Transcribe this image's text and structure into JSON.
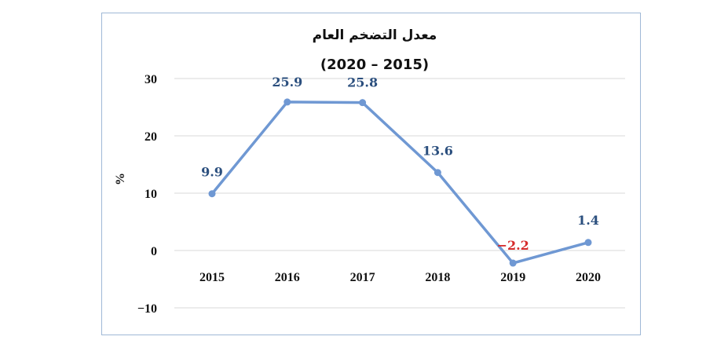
{
  "chart_data": {
    "type": "line",
    "title": "معدل التضخم العام",
    "subtitle": "(2020 – 2015)",
    "ylabel": "%",
    "xlabel": "",
    "x": [
      "2015",
      "2016",
      "2017",
      "2018",
      "2019",
      "2020"
    ],
    "series": [
      {
        "values": [
          9.9,
          25.9,
          25.8,
          13.6,
          -2.2,
          1.4
        ],
        "color": "#6f98d3"
      }
    ],
    "data_labels": [
      "9.9",
      "25.9",
      "25.8",
      "13.6",
      "−2.2",
      "1.4"
    ],
    "yticks": [
      30,
      20,
      10,
      0,
      -10
    ],
    "ytick_labels": [
      "30",
      "20",
      "10",
      "0",
      "−10"
    ],
    "ylim": [
      -10,
      30
    ],
    "grid": true,
    "colors": {
      "line": "#6f98d3",
      "label": "#2b4f7e",
      "negative_label": "#d62b2b",
      "grid": "#d9d9d9",
      "border": "#9fb8d6"
    }
  }
}
